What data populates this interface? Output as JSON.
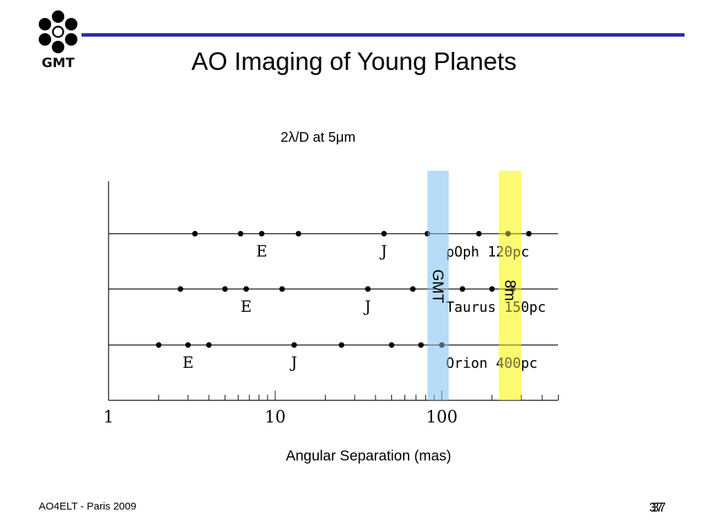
{
  "logo": {
    "text": "GMT"
  },
  "slide": {
    "title": "AO Imaging of Young Planets",
    "subtitle": "2λ/D at 5μm",
    "footer": "AO4ELT - Paris 2009",
    "page_number": "37"
  },
  "colors": {
    "rule": "#2b2fa8",
    "gmt_band": "#b7dcf8",
    "band_8m": "#fbfa72",
    "dot": "#000000"
  },
  "chart_data": {
    "type": "scatter",
    "xscale": "log",
    "xlim": [
      1,
      500
    ],
    "xlabel": "Angular Separation (mas)",
    "xticks": [
      1,
      10,
      100
    ],
    "xtick_labels": [
      "1",
      "10",
      "100"
    ],
    "bands": [
      {
        "label": "GMT",
        "range": [
          82,
          110
        ]
      },
      {
        "label": "8m",
        "range": [
          220,
          300
        ]
      }
    ],
    "series": [
      {
        "name": "ρOph 120pc",
        "x": [
          3.3,
          6.2,
          8.3,
          13.8,
          45,
          82,
          167,
          250,
          333
        ],
        "markers": [
          {
            "label": "E",
            "x": 8.3
          },
          {
            "label": "J",
            "x": 45
          }
        ]
      },
      {
        "name": "Taurus 150pc",
        "x": [
          2.7,
          5.0,
          6.7,
          11.0,
          36,
          67,
          133,
          200,
          267
        ],
        "markers": [
          {
            "label": "E",
            "x": 6.7
          },
          {
            "label": "J",
            "x": 36
          }
        ]
      },
      {
        "name": "Orion 400pc",
        "x": [
          2.0,
          3.0,
          4.0,
          13.0,
          25,
          50,
          75,
          100
        ],
        "markers": [
          {
            "label": "E",
            "x": 3.0
          },
          {
            "label": "J",
            "x": 13.0
          }
        ]
      }
    ]
  }
}
